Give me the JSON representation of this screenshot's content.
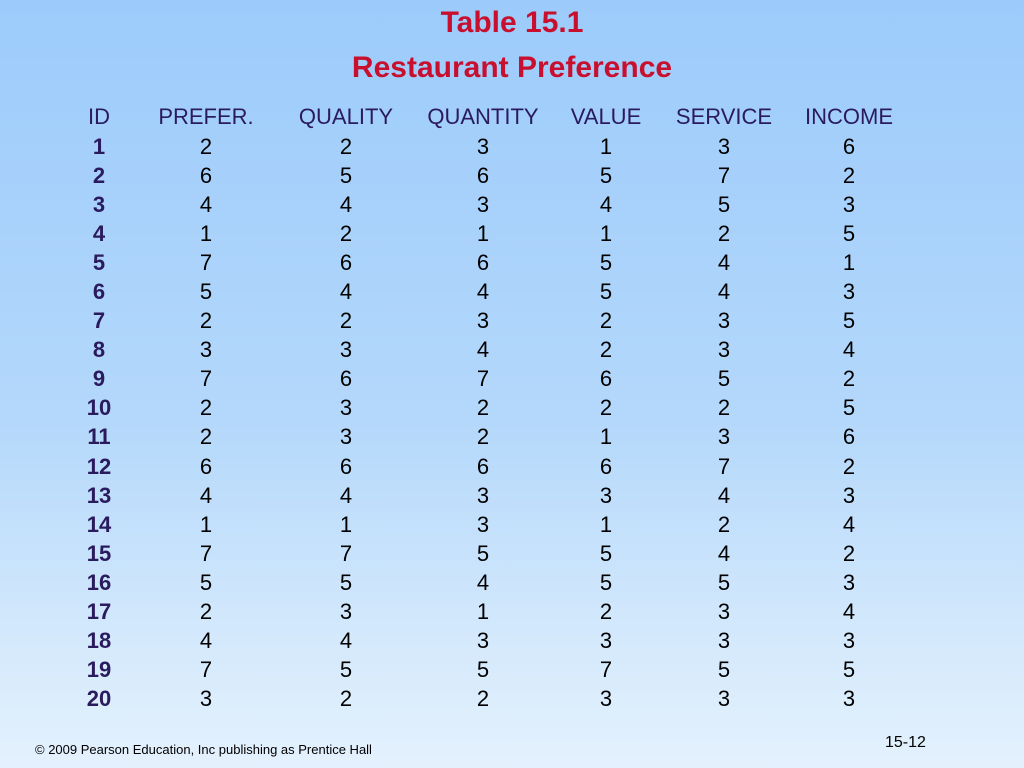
{
  "title_line1": "Table 15.1",
  "title_line2": "Restaurant Preference",
  "columns": [
    "ID",
    "PREFER.",
    "QUALITY",
    "QUANTITY",
    "VALUE",
    "SERVICE",
    "INCOME"
  ],
  "rows": [
    [
      "1",
      "2",
      "2",
      "3",
      "1",
      "3",
      "6"
    ],
    [
      "2",
      "6",
      "5",
      "6",
      "5",
      "7",
      "2"
    ],
    [
      "3",
      "4",
      "4",
      "3",
      "4",
      "5",
      "3"
    ],
    [
      "4",
      "1",
      "2",
      "1",
      "1",
      "2",
      "5"
    ],
    [
      "5",
      "7",
      "6",
      "6",
      "5",
      "4",
      "1"
    ],
    [
      "6",
      "5",
      "4",
      "4",
      "5",
      "4",
      "3"
    ],
    [
      "7",
      "2",
      "2",
      "3",
      "2",
      "3",
      "5"
    ],
    [
      "8",
      "3",
      "3",
      "4",
      "2",
      "3",
      "4"
    ],
    [
      "9",
      "7",
      "6",
      "7",
      "6",
      "5",
      "2"
    ],
    [
      "10",
      "2",
      "3",
      "2",
      "2",
      "2",
      "5"
    ],
    [
      "11",
      "2",
      "3",
      "2",
      "1",
      "3",
      "6"
    ],
    [
      "12",
      "6",
      "6",
      "6",
      "6",
      "7",
      "2"
    ],
    [
      "13",
      "4",
      "4",
      "3",
      "3",
      "4",
      "3"
    ],
    [
      "14",
      "1",
      "1",
      "3",
      "1",
      "2",
      "4"
    ],
    [
      "15",
      "7",
      "7",
      "5",
      "5",
      "4",
      "2"
    ],
    [
      "16",
      "5",
      "5",
      "4",
      "5",
      "5",
      "3"
    ],
    [
      "17",
      "2",
      "3",
      "1",
      "2",
      "3",
      "4"
    ],
    [
      "18",
      "4",
      "4",
      "3",
      "3",
      "3",
      "3"
    ],
    [
      "19",
      "7",
      "5",
      "5",
      "7",
      "5",
      "5"
    ],
    [
      "20",
      "3",
      "2",
      "2",
      "3",
      "3",
      "3"
    ]
  ],
  "footer_text": "© 2009 Pearson Education, Inc publishing as Prentice Hall",
  "page_number": "15-12",
  "colors": {
    "title": "#c8102e",
    "header_text": "#2a1a5e",
    "background_top": "#9ccbfb",
    "background_bottom": "#e4f1fd"
  }
}
